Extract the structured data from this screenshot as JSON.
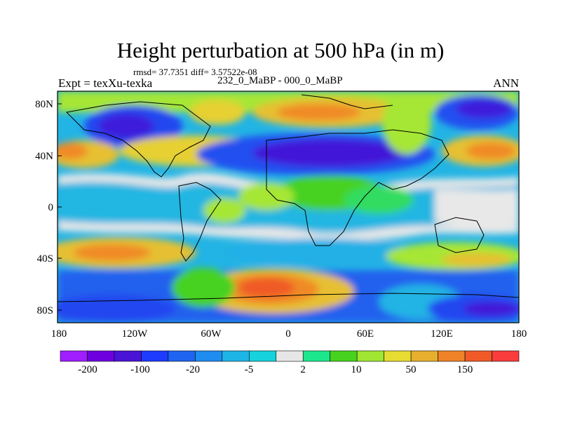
{
  "title": "Height perturbation at 500 hPa (in m)",
  "stats_text": "rmsd= 37.7351  diff= 3.57522e-08",
  "experiment_text": "Expt = texXu-texka",
  "period_text": "232_0_MaBP - 000_0_MaBP",
  "season": "ANN",
  "map": {
    "lat_ticks": [
      "80N",
      "40N",
      "0",
      "40S",
      "80S"
    ],
    "lon_ticks": [
      "180",
      "120W",
      "60W",
      "0",
      "60E",
      "120E",
      "180"
    ]
  },
  "colorbar": {
    "colors": [
      "#a01eff",
      "#6e00e0",
      "#4a14d6",
      "#1e3cff",
      "#1f64f0",
      "#1f8cf0",
      "#1fb4e6",
      "#16d2dc",
      "#e6e6e6",
      "#1ee68c",
      "#46d21e",
      "#a0e632",
      "#e6dc32",
      "#e6af2d",
      "#f08228",
      "#f05a28",
      "#fa3c3c"
    ],
    "labels": [
      "-200",
      "-100",
      "-20",
      "-5",
      "2",
      "10",
      "50",
      "150"
    ]
  }
}
